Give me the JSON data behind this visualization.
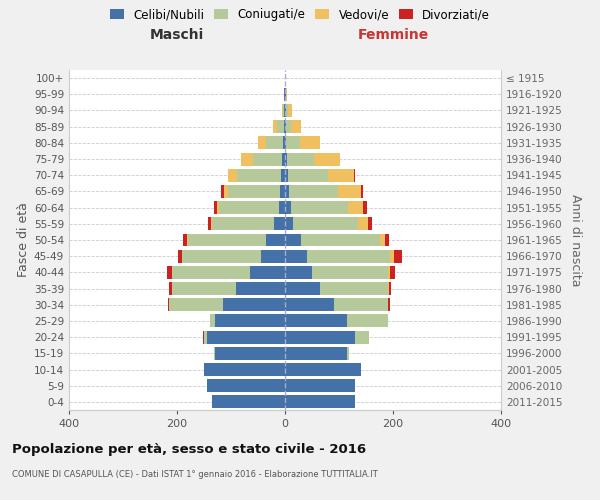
{
  "age_groups": [
    "100+",
    "95-99",
    "90-94",
    "85-89",
    "80-84",
    "75-79",
    "70-74",
    "65-69",
    "60-64",
    "55-59",
    "50-54",
    "45-49",
    "40-44",
    "35-39",
    "30-34",
    "25-29",
    "20-24",
    "15-19",
    "10-14",
    "5-9",
    "0-4"
  ],
  "birth_years": [
    "≤ 1915",
    "1916-1920",
    "1921-1925",
    "1926-1930",
    "1931-1935",
    "1936-1940",
    "1941-1945",
    "1946-1950",
    "1951-1955",
    "1956-1960",
    "1961-1965",
    "1966-1970",
    "1971-1975",
    "1976-1980",
    "1981-1985",
    "1986-1990",
    "1991-1995",
    "1996-2000",
    "2001-2005",
    "2006-2010",
    "2011-2015"
  ],
  "colors": {
    "celibe": "#4472a8",
    "coniugato": "#b5c99a",
    "vedovo": "#f0c060",
    "divorziato": "#cc2222"
  },
  "maschi": {
    "celibe": [
      0,
      1,
      1,
      2,
      3,
      5,
      8,
      10,
      12,
      20,
      35,
      45,
      65,
      90,
      115,
      130,
      145,
      130,
      150,
      145,
      135
    ],
    "coniugato": [
      0,
      0,
      3,
      12,
      32,
      55,
      80,
      95,
      110,
      115,
      145,
      145,
      145,
      120,
      100,
      8,
      5,
      1,
      0,
      0,
      0
    ],
    "vedovo": [
      0,
      0,
      2,
      8,
      15,
      22,
      18,
      8,
      4,
      2,
      1,
      1,
      0,
      0,
      0,
      0,
      0,
      0,
      0,
      0,
      0
    ],
    "divorziato": [
      0,
      0,
      0,
      0,
      0,
      0,
      0,
      5,
      6,
      5,
      8,
      7,
      8,
      4,
      2,
      1,
      1,
      0,
      0,
      0,
      0
    ]
  },
  "femmine": {
    "nubile": [
      0,
      1,
      1,
      1,
      2,
      3,
      5,
      8,
      12,
      15,
      30,
      40,
      50,
      65,
      90,
      115,
      130,
      115,
      140,
      130,
      130
    ],
    "coniugata": [
      0,
      0,
      4,
      10,
      25,
      50,
      75,
      90,
      105,
      120,
      145,
      155,
      140,
      125,
      100,
      75,
      25,
      3,
      0,
      0,
      0
    ],
    "vedova": [
      0,
      2,
      8,
      18,
      38,
      48,
      48,
      42,
      28,
      18,
      10,
      7,
      4,
      2,
      1,
      0,
      0,
      0,
      0,
      0,
      0
    ],
    "divorziata": [
      0,
      0,
      0,
      0,
      0,
      0,
      1,
      5,
      7,
      8,
      8,
      14,
      10,
      5,
      3,
      1,
      1,
      0,
      0,
      0,
      0
    ]
  },
  "xlim": 400,
  "title": "Popolazione per età, sesso e stato civile - 2016",
  "subtitle": "COMUNE DI CASAPULLA (CE) - Dati ISTAT 1° gennaio 2016 - Elaborazione TUTTITALIA.IT",
  "xlabel_left": "Maschi",
  "xlabel_right": "Femmine",
  "ylabel": "Fasce di età",
  "ylabel_right": "Anni di nascita",
  "legend_labels": [
    "Celibi/Nubili",
    "Coniugati/e",
    "Vedovi/e",
    "Divorziati/e"
  ],
  "bg_color": "#f0f0f0",
  "plot_bg": "#ffffff"
}
